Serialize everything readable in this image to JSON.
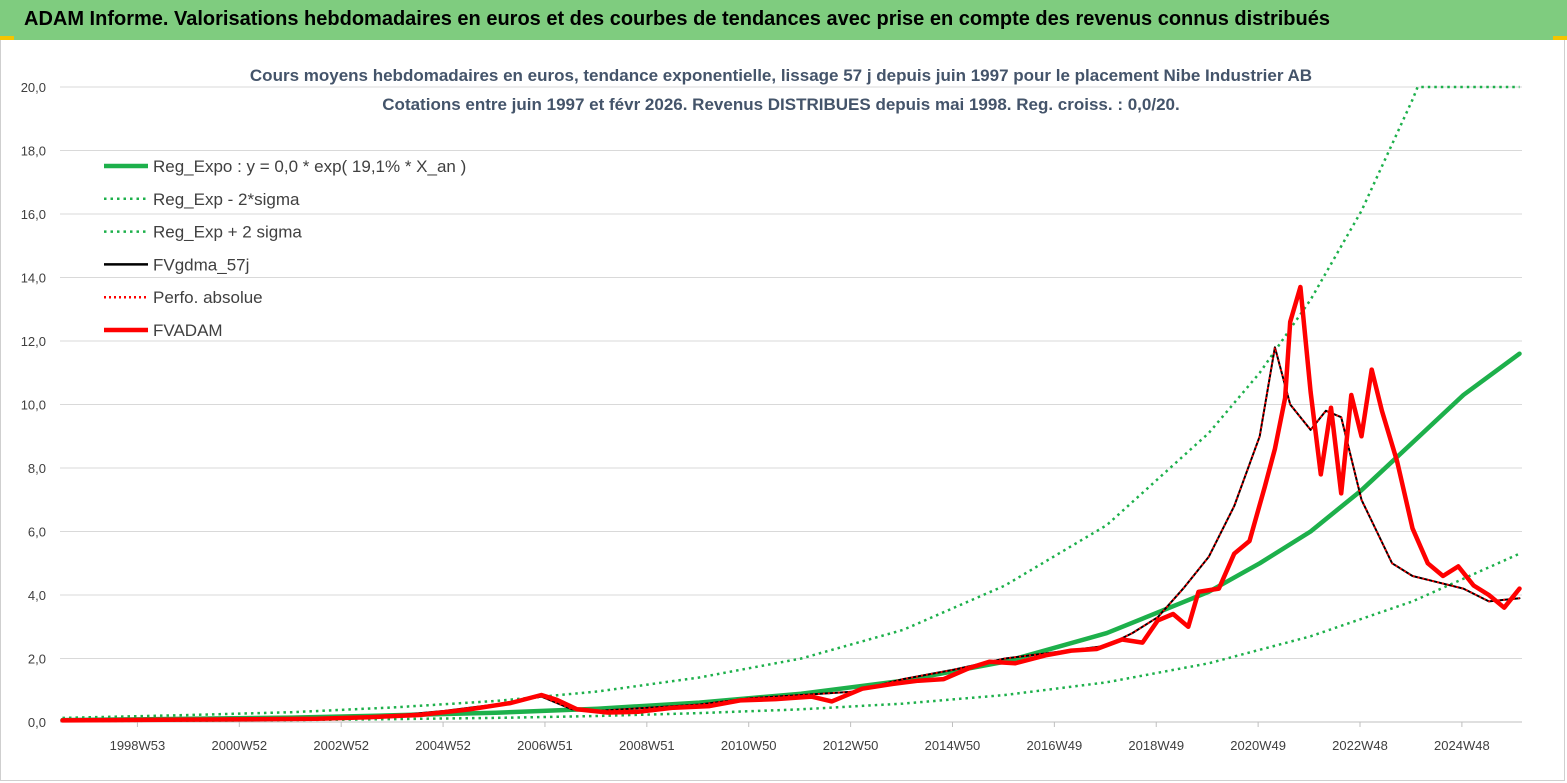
{
  "header": {
    "title": "ADAM Informe. Valorisations hebdomadaires en euros et des courbes de tendances avec prise en compte des revenus connus distribués"
  },
  "colors": {
    "green": "#1db04b",
    "red": "#ff0000",
    "black": "#000000",
    "header_bg": "#7fcc7f",
    "accent": "#f5c400"
  },
  "chart_data": {
    "type": "line",
    "title": "Cours moyens hebdomadaires en euros, tendance exponentielle, lissage 57 j depuis juin 1997 pour le placement Nibe Industrier AB",
    "subtitle": "Cotations entre juin 1997 et févr 2026. Revenus DISTRIBUES depuis mai 1998. Reg. croiss. : 0,0/20.",
    "ylim": [
      0,
      20
    ],
    "y_ticks": [
      "0,0",
      "2,0",
      "4,0",
      "6,0",
      "8,0",
      "10,0",
      "12,0",
      "14,0",
      "16,0",
      "18,0",
      "20,0"
    ],
    "x_ticks": [
      "1998W53",
      "2000W52",
      "2002W52",
      "2004W52",
      "2006W51",
      "2008W51",
      "2010W50",
      "2012W50",
      "2014W50",
      "2016W49",
      "2018W49",
      "2020W49",
      "2022W48",
      "2024W48"
    ],
    "x_range": [
      1997.45,
      2026.15
    ],
    "grid": "horizontal",
    "legend_position": "top-left",
    "series": [
      {
        "name": "Reg_Expo : y = 0,0 * exp( 19,1% *  X_an )",
        "style": "solid-thick",
        "color": "#1db04b",
        "x": [
          1997.5,
          2000,
          2002,
          2004,
          2006,
          2008,
          2010,
          2012,
          2014,
          2016,
          2018,
          2020,
          2021,
          2022,
          2023,
          2024,
          2025,
          2026.1
        ],
        "y": [
          0.06,
          0.1,
          0.14,
          0.21,
          0.29,
          0.42,
          0.61,
          0.89,
          1.3,
          1.9,
          2.8,
          4.1,
          5.0,
          6.0,
          7.3,
          8.8,
          10.3,
          11.6
        ]
      },
      {
        "name": "Reg_Exp - 2*sigma",
        "style": "dotted",
        "color": "#1db04b",
        "x": [
          1997.5,
          2000,
          2002,
          2004,
          2006,
          2008,
          2010,
          2012,
          2014,
          2016,
          2018,
          2020,
          2022,
          2024,
          2026.1
        ],
        "y": [
          0.03,
          0.04,
          0.06,
          0.09,
          0.13,
          0.19,
          0.28,
          0.4,
          0.58,
          0.85,
          1.25,
          1.85,
          2.7,
          3.8,
          5.3
        ]
      },
      {
        "name": "Reg_Exp + 2 sigma",
        "style": "dotted",
        "color": "#1db04b",
        "x": [
          1997.5,
          2000,
          2002,
          2004,
          2006,
          2008,
          2010,
          2012,
          2014,
          2016,
          2018,
          2020,
          2021,
          2022,
          2023,
          2024,
          2024.1,
          2026.1
        ],
        "y": [
          0.13,
          0.22,
          0.31,
          0.46,
          0.66,
          0.96,
          1.4,
          2.0,
          2.9,
          4.3,
          6.2,
          9.1,
          11.0,
          13.3,
          16.1,
          19.6,
          20.0,
          20.0
        ]
      },
      {
        "name": "FVgdma_57j",
        "style": "solid-thin",
        "color": "#000000",
        "x": [
          1997.5,
          2000,
          2002,
          2004,
          2005,
          2006,
          2006.9,
          2007.5,
          2008,
          2009,
          2010,
          2011,
          2012,
          2013,
          2014,
          2015,
          2016,
          2017,
          2018,
          2018.5,
          2019,
          2019.5,
          2020,
          2020.5,
          2021,
          2021.3,
          2021.6,
          2022,
          2022.3,
          2022.6,
          2023,
          2023.3,
          2023.6,
          2024,
          2024.5,
          2025,
          2025.5,
          2026.1
        ],
        "y": [
          0.05,
          0.07,
          0.1,
          0.2,
          0.35,
          0.55,
          0.8,
          0.4,
          0.35,
          0.45,
          0.55,
          0.75,
          0.85,
          0.95,
          1.35,
          1.65,
          2.0,
          2.2,
          2.4,
          2.8,
          3.3,
          4.2,
          5.2,
          6.8,
          9.0,
          11.8,
          10.0,
          9.2,
          9.8,
          9.6,
          7.0,
          6.0,
          5.0,
          4.6,
          4.4,
          4.2,
          3.8,
          3.9
        ]
      },
      {
        "name": "Perfo. absolue",
        "style": "dotted-thin",
        "color": "#ff0000",
        "x": [
          1997.5,
          2000,
          2002,
          2004,
          2005,
          2006,
          2006.9,
          2007.5,
          2008,
          2009,
          2010,
          2011,
          2012,
          2013,
          2014,
          2015,
          2016,
          2017,
          2018,
          2018.5,
          2019,
          2019.5,
          2020,
          2020.5,
          2021,
          2021.3,
          2021.6,
          2022,
          2022.3,
          2022.6,
          2023,
          2023.3,
          2023.6,
          2024,
          2024.5,
          2025,
          2025.5,
          2026.1
        ],
        "y": [
          0.05,
          0.07,
          0.1,
          0.2,
          0.35,
          0.55,
          0.8,
          0.4,
          0.35,
          0.45,
          0.55,
          0.75,
          0.85,
          0.95,
          1.35,
          1.65,
          2.0,
          2.2,
          2.4,
          2.8,
          3.3,
          4.2,
          5.2,
          6.8,
          9.0,
          11.8,
          10.0,
          9.2,
          9.8,
          9.6,
          7.0,
          6.0,
          5.0,
          4.6,
          4.4,
          4.2,
          3.8,
          3.9
        ]
      },
      {
        "name": "FVADAM",
        "style": "solid-thick",
        "color": "#ff0000",
        "x": [
          1997.5,
          1998.5,
          1999.5,
          2000.5,
          2001.5,
          2002.5,
          2003.5,
          2004.5,
          2005.5,
          2006.3,
          2006.9,
          2007.2,
          2007.6,
          2008.2,
          2008.8,
          2009.5,
          2010.2,
          2010.8,
          2011.5,
          2012.2,
          2012.6,
          2013.2,
          2013.8,
          2014.3,
          2014.8,
          2015.3,
          2015.7,
          2016.2,
          2016.8,
          2017.3,
          2017.8,
          2018.3,
          2018.7,
          2019.0,
          2019.3,
          2019.6,
          2019.8,
          2020.2,
          2020.5,
          2020.8,
          2021.1,
          2021.3,
          2021.5,
          2021.6,
          2021.8,
          2022.0,
          2022.2,
          2022.4,
          2022.6,
          2022.8,
          2023.0,
          2023.2,
          2023.4,
          2023.7,
          2024.0,
          2024.3,
          2024.6,
          2024.9,
          2025.2,
          2025.5,
          2025.8,
          2026.1
        ],
        "y": [
          0.05,
          0.06,
          0.07,
          0.08,
          0.09,
          0.1,
          0.15,
          0.22,
          0.4,
          0.6,
          0.85,
          0.7,
          0.4,
          0.3,
          0.32,
          0.45,
          0.5,
          0.68,
          0.72,
          0.8,
          0.65,
          1.05,
          1.2,
          1.3,
          1.35,
          1.7,
          1.9,
          1.85,
          2.1,
          2.25,
          2.3,
          2.6,
          2.5,
          3.2,
          3.4,
          3.0,
          4.1,
          4.2,
          5.3,
          5.7,
          7.4,
          8.6,
          10.2,
          12.6,
          13.7,
          10.4,
          7.8,
          9.9,
          7.2,
          10.3,
          9.0,
          11.1,
          9.8,
          8.2,
          6.1,
          5.0,
          4.6,
          4.9,
          4.3,
          4.0,
          3.6,
          4.2
        ]
      }
    ]
  }
}
